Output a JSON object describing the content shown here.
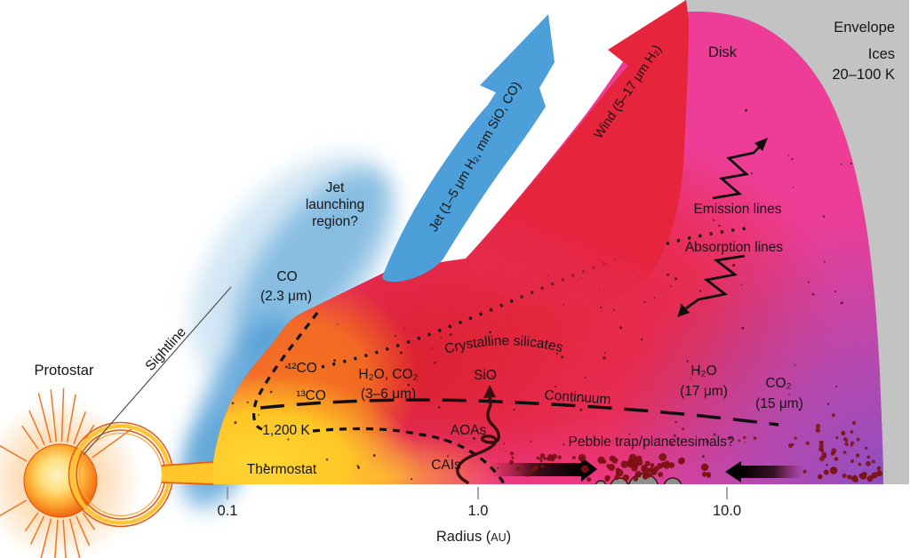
{
  "colors": {
    "envelope_gray": "#C3C3C3",
    "disk_pink": "#EE3D96",
    "disk_red": "#E5263B",
    "disk_deep_red": "#DA1F2C",
    "disk_orange": "#F4741E",
    "disk_yellow": "#FFD833",
    "disk_purple": "#8750C7",
    "jet_blue": "#4C9FD8",
    "wind_red": "#E6243C",
    "star_orange": "#EE6F1A",
    "pebble_red": "#7C1212",
    "text": "#151515"
  },
  "labels": {
    "protostar": "Protostar",
    "sightline": "Sightline",
    "jet_launching_1": "Jet",
    "jet_launching_2": "launching",
    "jet_launching_3": "region?",
    "co_overtone": "CO",
    "co_overtone_wl": "(2.3 μm)",
    "jet_arrow": "Jet (1–5 μm H₂, mm SiO, CO)",
    "wind_arrow": "Wind (5–17 μm H₂)",
    "disk": "Disk",
    "envelope": "Envelope",
    "ices": "Ices",
    "envelope_temp": "20–100 K",
    "emission": "Emission lines",
    "absorption": "Absorption lines",
    "crystalline": "Crystalline silicates",
    "co12": "¹²CO",
    "co13": "¹³CO",
    "h2o_co2": "H₂O, CO₂",
    "h2o_co2_wl": "(3–6 μm)",
    "temp_1200": "1,200 K",
    "thermostat": "Thermostat",
    "sio": "SiO",
    "continuum": "Continuum",
    "aoas": "AOAs",
    "cais": "CAIs",
    "h2o_mir": "H₂O",
    "h2o_mir_wl": "(17 μm)",
    "co2_mir": "CO₂",
    "co2_mir_wl": "(15 μm)",
    "pebble_trap": "Pebble trap/planetesimals?"
  },
  "axis": {
    "ticks": [
      "0.1",
      "1.0",
      "10.0"
    ],
    "label_prefix": "Radius (",
    "label_unit": "AU",
    "label_suffix": ")"
  }
}
